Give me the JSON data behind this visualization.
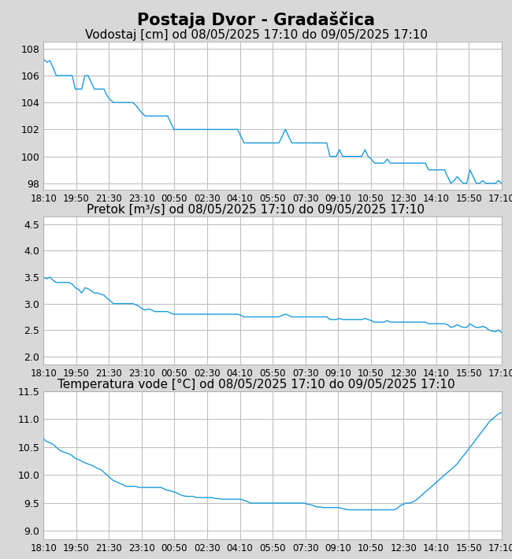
{
  "title": "Postaja Dvor - Gradaščica",
  "title_fontsize": 15,
  "subtitle1": "Vodostaj [cm] od 08/05/2025 17:10 do 09/05/2025 17:10",
  "subtitle2": "Pretok [m³/s] od 08/05/2025 17:10 do 09/05/2025 17:10",
  "subtitle3": "Temperatura vode [°C] od 08/05/2025 17:10 do 09/05/2025 17:10",
  "subtitle_fontsize": 11,
  "line_color": "#1a9cdc",
  "background_color": "#d8d8d8",
  "plot_bg_color": "#ffffff",
  "grid_color": "#c0c0c0",
  "xtick_labels": [
    "18:10",
    "19:50",
    "21:30",
    "23:10",
    "00:50",
    "02:30",
    "04:10",
    "05:50",
    "07:30",
    "09:10",
    "10:50",
    "12:30",
    "14:10",
    "15:50",
    "17:10"
  ],
  "vodostaj_ylim": [
    97.5,
    108.5
  ],
  "vodostaj_yticks": [
    98,
    100,
    102,
    104,
    106,
    108
  ],
  "pretok_ylim": [
    1.85,
    4.65
  ],
  "pretok_yticks": [
    2.0,
    2.5,
    3.0,
    3.5,
    4.0,
    4.5
  ],
  "temp_ylim": [
    8.85,
    11.35
  ],
  "temp_yticks": [
    9.0,
    9.5,
    10.0,
    10.5,
    11.0,
    11.5
  ],
  "vodostaj_data": [
    107.2,
    107.0,
    107.1,
    106.6,
    106.0,
    106.0,
    106.0,
    106.0,
    106.0,
    106.0,
    105.0,
    105.0,
    105.0,
    106.0,
    106.0,
    105.5,
    105.0,
    105.0,
    105.0,
    105.0,
    104.5,
    104.2,
    104.0,
    104.0,
    104.0,
    104.0,
    104.0,
    104.0,
    104.0,
    103.8,
    103.5,
    103.2,
    103.0,
    103.0,
    103.0,
    103.0,
    103.0,
    103.0,
    103.0,
    103.0,
    102.5,
    102.0,
    102.0,
    102.0,
    102.0,
    102.0,
    102.0,
    102.0,
    102.0,
    102.0,
    102.0,
    102.0,
    102.0,
    102.0,
    102.0,
    102.0,
    102.0,
    102.0,
    102.0,
    102.0,
    102.0,
    102.0,
    101.5,
    101.0,
    101.0,
    101.0,
    101.0,
    101.0,
    101.0,
    101.0,
    101.0,
    101.0,
    101.0,
    101.0,
    101.0,
    101.5,
    102.0,
    101.5,
    101.0,
    101.0,
    101.0,
    101.0,
    101.0,
    101.0,
    101.0,
    101.0,
    101.0,
    101.0,
    101.0,
    101.0,
    100.0,
    100.0,
    100.0,
    100.5,
    100.0,
    100.0,
    100.0,
    100.0,
    100.0,
    100.0,
    100.0,
    100.5,
    100.0,
    99.8,
    99.5,
    99.5,
    99.5,
    99.5,
    99.8,
    99.5,
    99.5,
    99.5,
    99.5,
    99.5,
    99.5,
    99.5,
    99.5,
    99.5,
    99.5,
    99.5,
    99.5,
    99.0,
    99.0,
    99.0,
    99.0,
    99.0,
    99.0,
    98.5,
    98.0,
    98.2,
    98.5,
    98.2,
    98.0,
    98.0,
    99.0,
    98.5,
    98.0,
    98.0,
    98.2,
    98.0,
    98.0,
    98.0,
    98.0,
    98.2,
    98.0
  ],
  "pretok_data": [
    3.5,
    3.47,
    3.5,
    3.44,
    3.4,
    3.4,
    3.4,
    3.4,
    3.4,
    3.37,
    3.3,
    3.27,
    3.2,
    3.3,
    3.28,
    3.24,
    3.2,
    3.2,
    3.18,
    3.16,
    3.1,
    3.05,
    3.0,
    3.0,
    3.0,
    3.0,
    3.0,
    3.0,
    3.0,
    2.98,
    2.95,
    2.9,
    2.88,
    2.9,
    2.88,
    2.85,
    2.85,
    2.85,
    2.85,
    2.85,
    2.82,
    2.8,
    2.8,
    2.8,
    2.8,
    2.8,
    2.8,
    2.8,
    2.8,
    2.8,
    2.8,
    2.8,
    2.8,
    2.8,
    2.8,
    2.8,
    2.8,
    2.8,
    2.8,
    2.8,
    2.8,
    2.8,
    2.78,
    2.75,
    2.75,
    2.75,
    2.75,
    2.75,
    2.75,
    2.75,
    2.75,
    2.75,
    2.75,
    2.75,
    2.75,
    2.78,
    2.8,
    2.78,
    2.75,
    2.75,
    2.75,
    2.75,
    2.75,
    2.75,
    2.75,
    2.75,
    2.75,
    2.75,
    2.75,
    2.75,
    2.7,
    2.7,
    2.7,
    2.72,
    2.7,
    2.7,
    2.7,
    2.7,
    2.7,
    2.7,
    2.7,
    2.72,
    2.7,
    2.68,
    2.65,
    2.65,
    2.65,
    2.65,
    2.68,
    2.65,
    2.65,
    2.65,
    2.65,
    2.65,
    2.65,
    2.65,
    2.65,
    2.65,
    2.65,
    2.65,
    2.65,
    2.62,
    2.62,
    2.62,
    2.62,
    2.62,
    2.62,
    2.6,
    2.55,
    2.57,
    2.6,
    2.57,
    2.55,
    2.55,
    2.62,
    2.58,
    2.55,
    2.55,
    2.57,
    2.55,
    2.5,
    2.48,
    2.47,
    2.5,
    2.45
  ],
  "temp_data": [
    10.65,
    10.6,
    10.58,
    10.55,
    10.5,
    10.45,
    10.42,
    10.4,
    10.38,
    10.35,
    10.3,
    10.28,
    10.25,
    10.22,
    10.2,
    10.18,
    10.15,
    10.12,
    10.1,
    10.05,
    10.0,
    9.95,
    9.9,
    9.88,
    9.85,
    9.83,
    9.8,
    9.8,
    9.8,
    9.8,
    9.78,
    9.78,
    9.78,
    9.78,
    9.78,
    9.78,
    9.78,
    9.78,
    9.75,
    9.73,
    9.72,
    9.7,
    9.68,
    9.65,
    9.63,
    9.62,
    9.62,
    9.62,
    9.6,
    9.6,
    9.6,
    9.6,
    9.6,
    9.6,
    9.58,
    9.58,
    9.57,
    9.57,
    9.57,
    9.57,
    9.57,
    9.57,
    9.57,
    9.55,
    9.53,
    9.5,
    9.5,
    9.5,
    9.5,
    9.5,
    9.5,
    9.5,
    9.5,
    9.5,
    9.5,
    9.5,
    9.5,
    9.5,
    9.5,
    9.5,
    9.5,
    9.5,
    9.5,
    9.48,
    9.47,
    9.45,
    9.43,
    9.43,
    9.42,
    9.42,
    9.42,
    9.42,
    9.42,
    9.42,
    9.4,
    9.39,
    9.38,
    9.38,
    9.38,
    9.38,
    9.38,
    9.38,
    9.38,
    9.38,
    9.38,
    9.38,
    9.38,
    9.38,
    9.38,
    9.38,
    9.38,
    9.4,
    9.45,
    9.48,
    9.5,
    9.5,
    9.52,
    9.55,
    9.6,
    9.65,
    9.7,
    9.75,
    9.8,
    9.85,
    9.9,
    9.95,
    10.0,
    10.05,
    10.1,
    10.15,
    10.2,
    10.28,
    10.35,
    10.42,
    10.5,
    10.57,
    10.65,
    10.72,
    10.8,
    10.87,
    10.95,
    11.0,
    11.05,
    11.1,
    11.12
  ]
}
